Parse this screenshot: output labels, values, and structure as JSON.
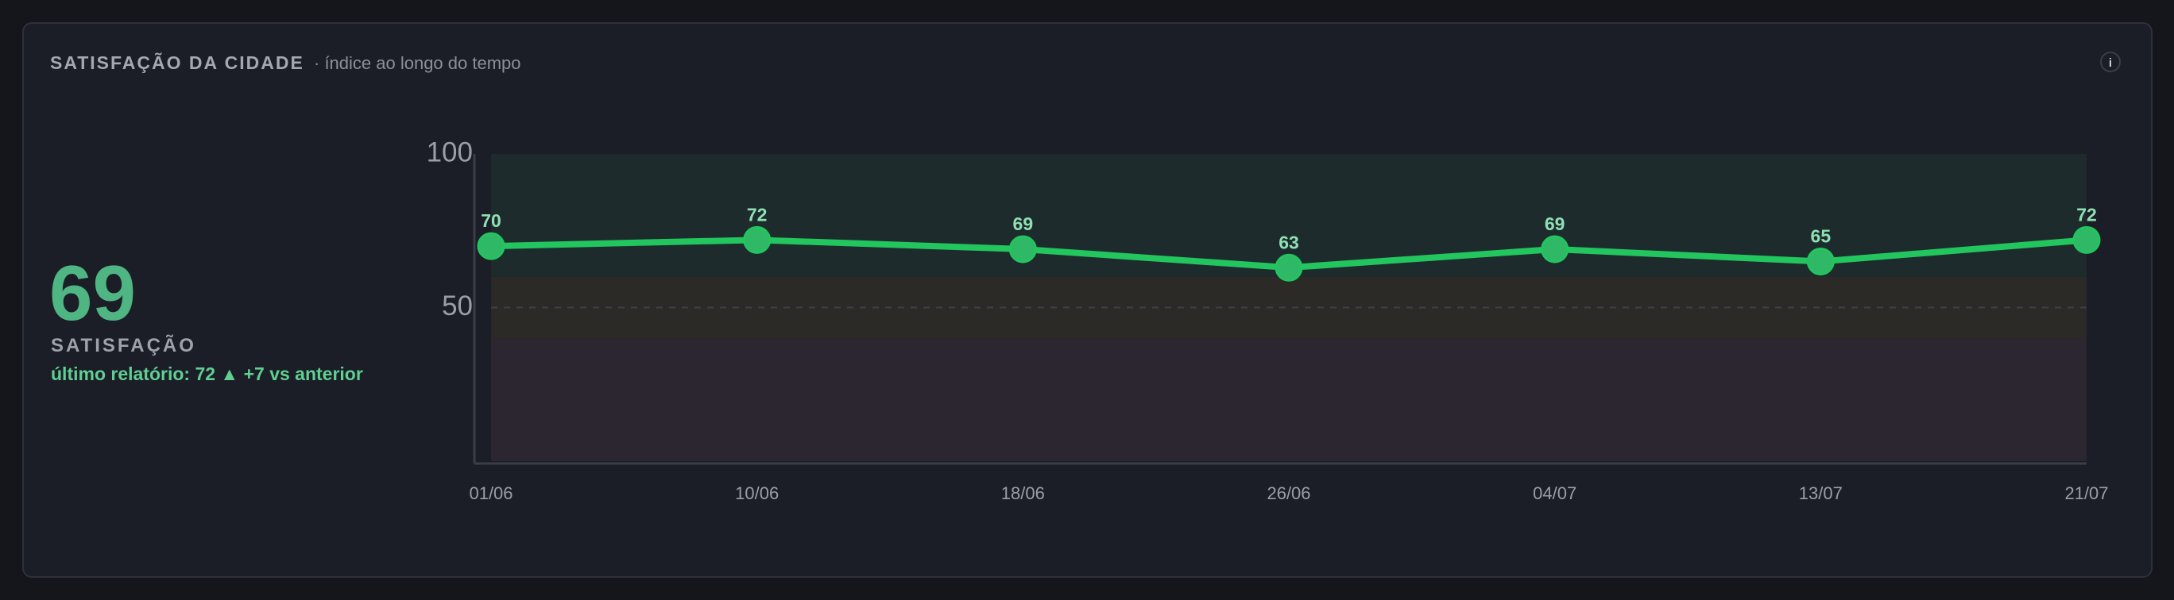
{
  "header": {
    "title": "SATISFAÇÃO DA CIDADE",
    "subtitle": "· índice ao longo do tempo",
    "info": "i"
  },
  "kpi": {
    "value": 69,
    "label": "SATISFAÇÃO",
    "note": "último relatório: 72 ▲ +7 vs anterior"
  },
  "chart_data": {
    "type": "line",
    "categories": [
      "01/06",
      "10/06",
      "18/06",
      "26/06",
      "04/07",
      "13/07",
      "21/07"
    ],
    "series": [
      {
        "name": "Satisfação",
        "color": "#22c55e",
        "values": [
          70,
          72,
          69,
          63,
          69,
          65,
          72
        ]
      }
    ],
    "ylim": [
      0,
      100
    ],
    "yticks": [
      50,
      100
    ],
    "bands": [
      {
        "from": 60,
        "to": 100,
        "color": "#1d2b2d"
      },
      {
        "from": 40,
        "to": 60,
        "color": "#2b2a27"
      },
      {
        "from": 0,
        "to": 40,
        "color": "#2c2630"
      }
    ],
    "reference_line": 50
  }
}
